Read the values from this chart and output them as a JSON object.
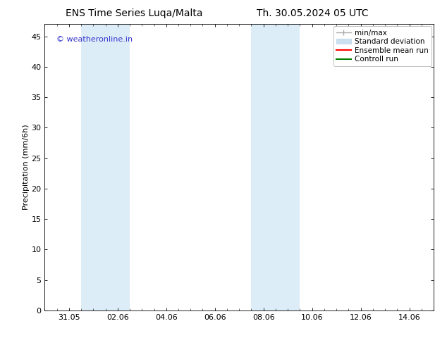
{
  "title_left": "ENS Time Series Luqa/Malta",
  "title_right": "Th. 30.05.2024 05 UTC",
  "ylabel": "Precipitation (mm/6h)",
  "ylim": [
    0,
    47
  ],
  "yticks": [
    0,
    5,
    10,
    15,
    20,
    25,
    30,
    35,
    40,
    45
  ],
  "xtick_labels": [
    "31.05",
    "02.06",
    "04.06",
    "06.06",
    "08.06",
    "10.06",
    "12.06",
    "14.06"
  ],
  "xtick_positions": [
    1,
    3,
    5,
    7,
    9,
    11,
    13,
    15
  ],
  "xlim": [
    0,
    16
  ],
  "background_color": "#ffffff",
  "plot_bg_color": "#ffffff",
  "shaded_bands": [
    {
      "x_start": 1.5,
      "x_end": 3.5,
      "color": "#ddedf8"
    },
    {
      "x_start": 8.5,
      "x_end": 10.5,
      "color": "#ddedf8"
    }
  ],
  "legend_items": [
    {
      "label": "min/max",
      "color": "#aaaaaa",
      "lw": 1.0
    },
    {
      "label": "Standard deviation",
      "color": "#cce0f0",
      "lw": 6
    },
    {
      "label": "Ensemble mean run",
      "color": "#ff0000",
      "lw": 1.5
    },
    {
      "label": "Controll run",
      "color": "#008000",
      "lw": 1.5
    }
  ],
  "watermark_text": "© weatheronline.in",
  "watermark_color": "#3333cc",
  "watermark_fontsize": 8,
  "title_fontsize": 10,
  "ylabel_fontsize": 8,
  "tick_fontsize": 8,
  "legend_fontsize": 7.5
}
